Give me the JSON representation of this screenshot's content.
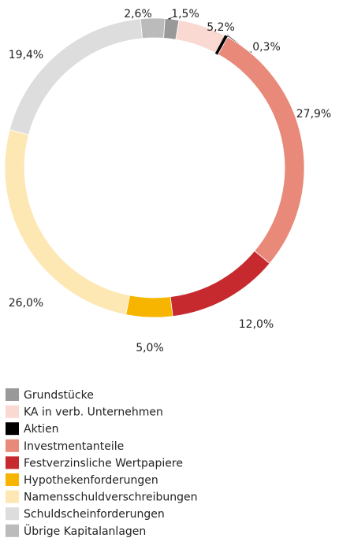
{
  "chart_data": {
    "type": "pie",
    "categories": [
      "Grundstücke",
      "KA in verb. Unternehmen",
      "Aktien",
      "Investmentanteile",
      "Festverzinsliche Wertpapiere",
      "Hypothekenforderungen",
      "Namensschuldverschreibungen",
      "Schuldscheinforderungen",
      "Übrige Kapitalanlagen"
    ],
    "values": [
      1.5,
      5.2,
      0.3,
      27.9,
      12.0,
      5.0,
      26.0,
      19.4,
      2.6
    ],
    "value_labels": [
      "1,5%",
      "5,2%",
      "0,3%",
      "27,9%",
      "12,0%",
      "5,0%",
      "26,0%",
      "19,4%",
      "2,6%"
    ],
    "colors": [
      "#999999",
      "#f9d9d2",
      "#000000",
      "#e8897a",
      "#c62a2e",
      "#f7b500",
      "#fde7b3",
      "#dddddd",
      "#bbbbbb"
    ]
  }
}
